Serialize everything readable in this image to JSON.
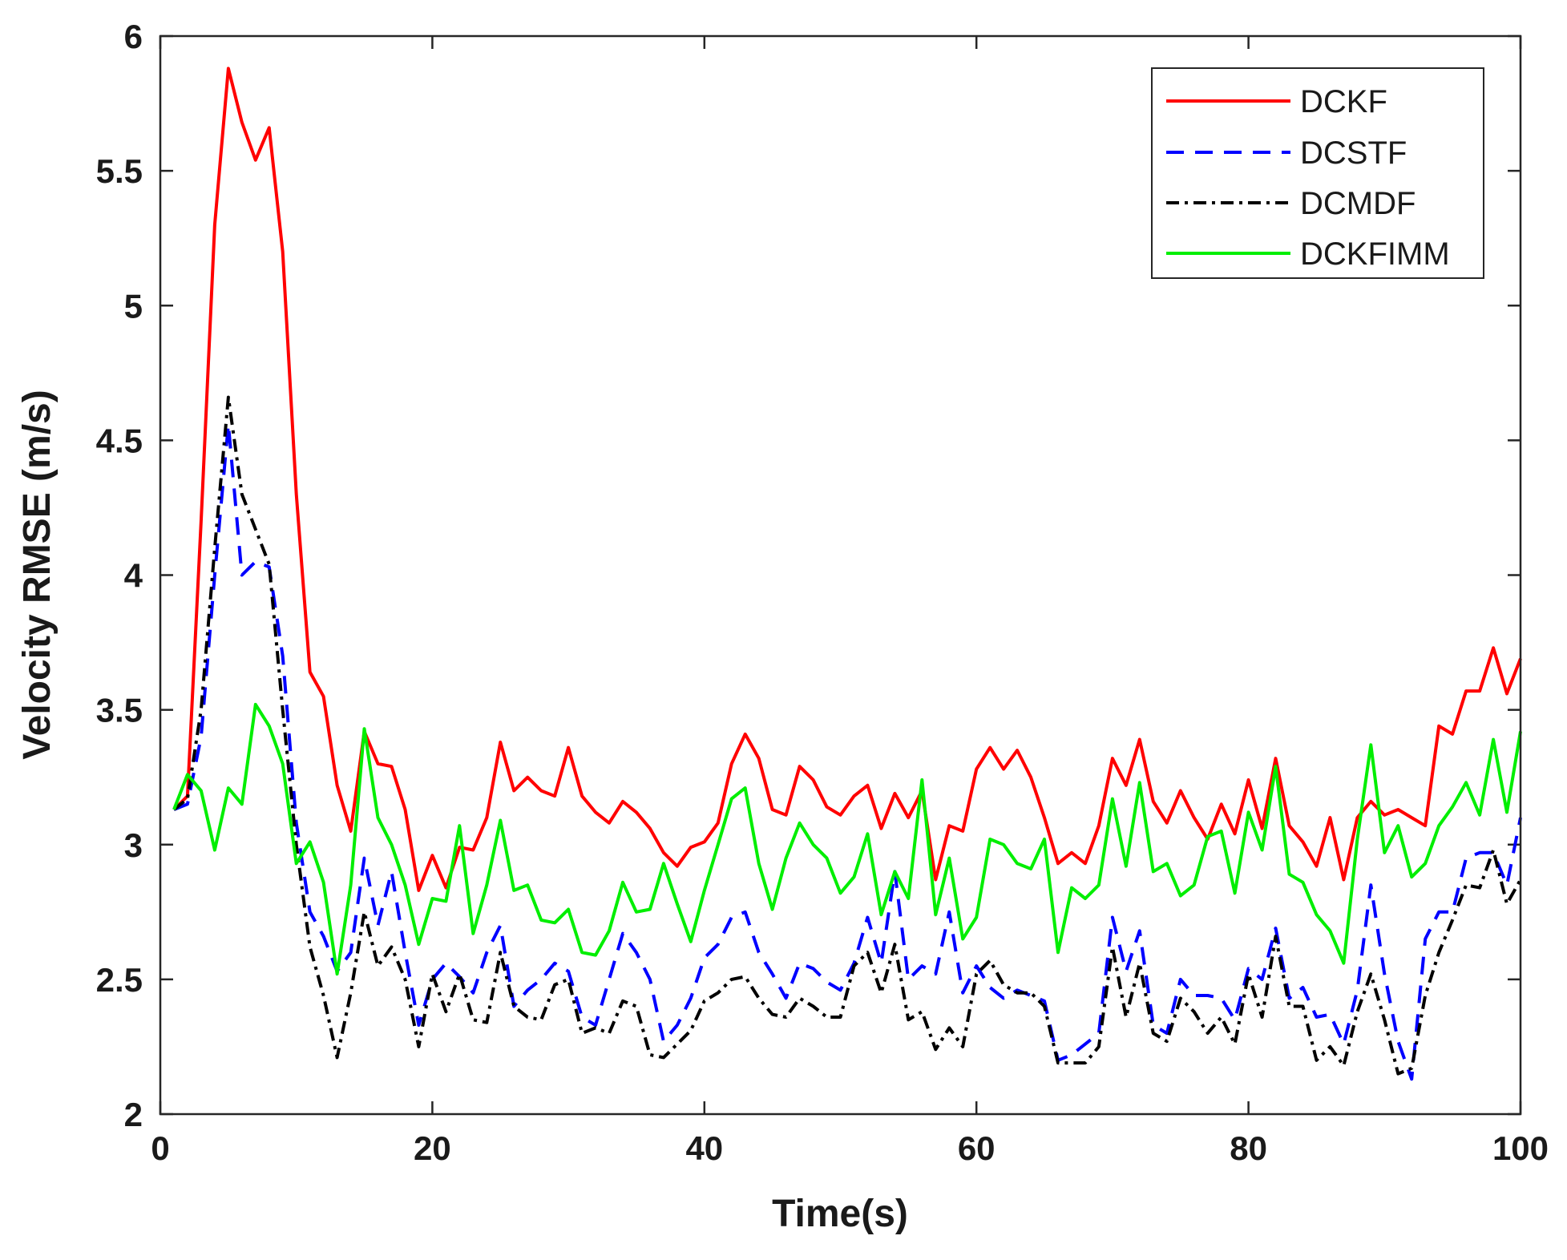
{
  "chart_data": {
    "type": "line",
    "title": "",
    "xlabel": "Time(s)",
    "ylabel": "Velocity RMSE (m/s)",
    "xlim": [
      0,
      100
    ],
    "ylim": [
      2,
      6
    ],
    "xticks": [
      0,
      20,
      40,
      60,
      80,
      100
    ],
    "yticks": [
      2,
      2.5,
      3,
      3.5,
      4,
      4.5,
      5,
      5.5,
      6
    ],
    "xtick_labels": [
      "0",
      "20",
      "40",
      "60",
      "80",
      "100"
    ],
    "ytick_labels": [
      "2",
      "2.5",
      "3",
      "3.5",
      "4",
      "4.5",
      "5",
      "5.5",
      "6"
    ],
    "grid": false,
    "legend_position": "top-right",
    "x": [
      1,
      2,
      3,
      4,
      5,
      6,
      7,
      8,
      9,
      10,
      11,
      12,
      13,
      14,
      15,
      16,
      17,
      18,
      19,
      20,
      21,
      22,
      23,
      24,
      25,
      26,
      27,
      28,
      29,
      30,
      31,
      32,
      33,
      34,
      35,
      36,
      37,
      38,
      39,
      40,
      41,
      42,
      43,
      44,
      45,
      46,
      47,
      48,
      49,
      50,
      51,
      52,
      53,
      54,
      55,
      56,
      57,
      58,
      59,
      60,
      61,
      62,
      63,
      64,
      65,
      66,
      67,
      68,
      69,
      70,
      71,
      72,
      73,
      74,
      75,
      76,
      77,
      78,
      79,
      80,
      81,
      82,
      83,
      84,
      85,
      86,
      87,
      88,
      89,
      90,
      91,
      92,
      93,
      94,
      95,
      96,
      97,
      98,
      99,
      100
    ],
    "series": [
      {
        "name": "DCKF",
        "color": "#ff0000",
        "dash": "solid",
        "values": [
          3.13,
          3.18,
          4.2,
          5.3,
          5.88,
          5.68,
          5.54,
          5.66,
          5.2,
          4.3,
          3.64,
          3.55,
          3.22,
          3.05,
          3.42,
          3.3,
          3.29,
          3.13,
          2.83,
          2.96,
          2.84,
          2.99,
          2.98,
          3.1,
          3.38,
          3.2,
          3.25,
          3.2,
          3.18,
          3.36,
          3.18,
          3.12,
          3.08,
          3.16,
          3.12,
          3.06,
          2.97,
          2.92,
          2.99,
          3.01,
          3.08,
          3.3,
          3.41,
          3.32,
          3.13,
          3.11,
          3.29,
          3.24,
          3.14,
          3.11,
          3.18,
          3.22,
          3.06,
          3.19,
          3.1,
          3.2,
          2.87,
          3.07,
          3.05,
          3.28,
          3.36,
          3.28,
          3.35,
          3.25,
          3.1,
          2.93,
          2.97,
          2.93,
          3.07,
          3.32,
          3.22,
          3.39,
          3.16,
          3.08,
          3.2,
          3.1,
          3.02,
          3.15,
          3.04,
          3.24,
          3.06,
          3.32,
          3.07,
          3.01,
          2.92,
          3.1,
          2.87,
          3.1,
          3.16,
          3.11,
          3.13,
          3.1,
          3.07,
          3.44,
          3.41,
          3.57,
          3.57,
          3.73,
          3.56,
          3.69
        ]
      },
      {
        "name": "DCSTF",
        "color": "#0000ff",
        "dash": "dashed",
        "values": [
          3.13,
          3.15,
          3.4,
          4.0,
          4.56,
          4.0,
          4.05,
          4.03,
          3.7,
          3.08,
          2.75,
          2.66,
          2.53,
          2.6,
          2.95,
          2.7,
          2.9,
          2.6,
          2.33,
          2.5,
          2.56,
          2.51,
          2.45,
          2.6,
          2.7,
          2.4,
          2.46,
          2.5,
          2.56,
          2.53,
          2.36,
          2.33,
          2.5,
          2.67,
          2.6,
          2.5,
          2.27,
          2.33,
          2.43,
          2.58,
          2.63,
          2.73,
          2.75,
          2.6,
          2.52,
          2.43,
          2.56,
          2.54,
          2.49,
          2.46,
          2.56,
          2.73,
          2.56,
          2.9,
          2.5,
          2.55,
          2.52,
          2.75,
          2.45,
          2.55,
          2.47,
          2.43,
          2.46,
          2.44,
          2.42,
          2.2,
          2.22,
          2.26,
          2.3,
          2.73,
          2.53,
          2.68,
          2.33,
          2.3,
          2.5,
          2.44,
          2.44,
          2.43,
          2.35,
          2.54,
          2.5,
          2.69,
          2.43,
          2.47,
          2.36,
          2.37,
          2.26,
          2.46,
          2.85,
          2.52,
          2.27,
          2.13,
          2.65,
          2.75,
          2.75,
          2.95,
          2.97,
          2.97,
          2.85,
          3.1
        ]
      },
      {
        "name": "DCMDF",
        "color": "#000000",
        "dash": "dashdot",
        "values": [
          3.13,
          3.17,
          3.5,
          4.1,
          4.66,
          4.3,
          4.17,
          4.04,
          3.5,
          3.0,
          2.62,
          2.44,
          2.21,
          2.45,
          2.75,
          2.55,
          2.62,
          2.5,
          2.25,
          2.52,
          2.38,
          2.52,
          2.35,
          2.34,
          2.6,
          2.4,
          2.36,
          2.35,
          2.48,
          2.5,
          2.3,
          2.32,
          2.3,
          2.42,
          2.4,
          2.22,
          2.21,
          2.26,
          2.31,
          2.42,
          2.45,
          2.5,
          2.51,
          2.43,
          2.37,
          2.36,
          2.43,
          2.4,
          2.36,
          2.36,
          2.55,
          2.6,
          2.45,
          2.63,
          2.35,
          2.38,
          2.24,
          2.32,
          2.25,
          2.52,
          2.57,
          2.48,
          2.45,
          2.45,
          2.4,
          2.19,
          2.19,
          2.19,
          2.25,
          2.62,
          2.36,
          2.56,
          2.3,
          2.27,
          2.43,
          2.38,
          2.3,
          2.36,
          2.26,
          2.52,
          2.36,
          2.66,
          2.4,
          2.4,
          2.2,
          2.25,
          2.18,
          2.38,
          2.52,
          2.35,
          2.15,
          2.17,
          2.44,
          2.6,
          2.72,
          2.85,
          2.84,
          2.98,
          2.78,
          2.87
        ]
      },
      {
        "name": "DCKFIMM",
        "color": "#00ee00",
        "dash": "solid",
        "values": [
          3.13,
          3.26,
          3.2,
          2.98,
          3.21,
          3.15,
          3.52,
          3.44,
          3.3,
          2.93,
          3.01,
          2.86,
          2.52,
          2.85,
          3.43,
          3.1,
          3.0,
          2.85,
          2.63,
          2.8,
          2.79,
          3.07,
          2.67,
          2.85,
          3.09,
          2.83,
          2.85,
          2.72,
          2.71,
          2.76,
          2.6,
          2.59,
          2.68,
          2.86,
          2.75,
          2.76,
          2.93,
          2.78,
          2.64,
          2.83,
          3.0,
          3.17,
          3.21,
          2.93,
          2.76,
          2.95,
          3.08,
          3.0,
          2.95,
          2.82,
          2.88,
          3.04,
          2.74,
          2.9,
          2.8,
          3.24,
          2.74,
          2.95,
          2.65,
          2.73,
          3.02,
          3.0,
          2.93,
          2.91,
          3.02,
          2.6,
          2.84,
          2.8,
          2.85,
          3.17,
          2.92,
          3.23,
          2.9,
          2.93,
          2.81,
          2.85,
          3.03,
          3.05,
          2.82,
          3.12,
          2.98,
          3.29,
          2.89,
          2.86,
          2.74,
          2.68,
          2.56,
          3.02,
          3.37,
          2.97,
          3.07,
          2.88,
          2.93,
          3.07,
          3.14,
          3.23,
          3.11,
          3.39,
          3.12,
          3.42
        ]
      }
    ]
  }
}
